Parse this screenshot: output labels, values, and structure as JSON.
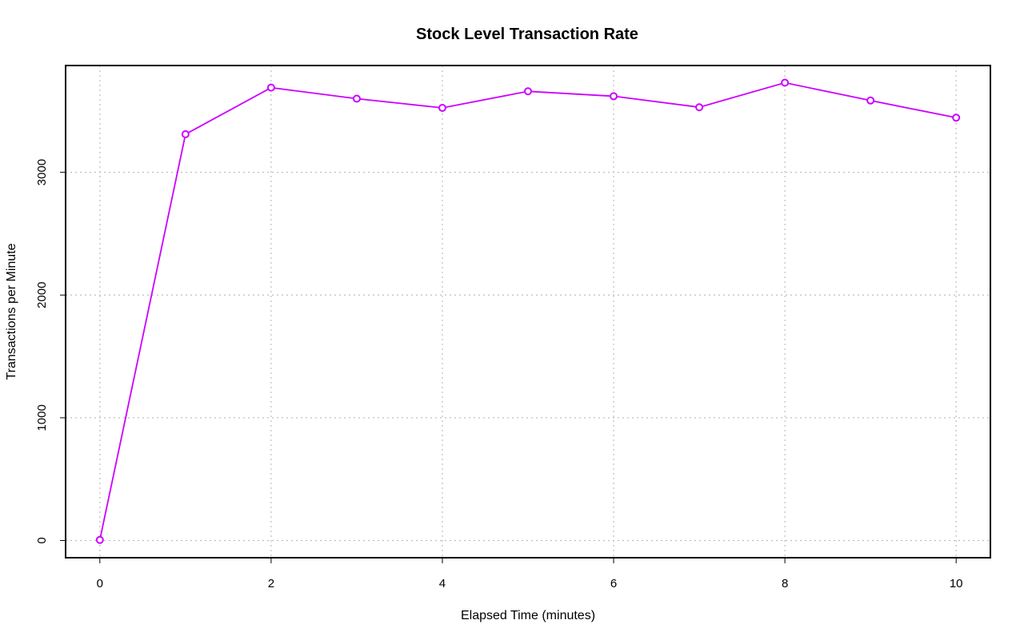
{
  "chart_data": {
    "type": "line",
    "title": "Stock Level Transaction Rate",
    "xlabel": "Elapsed Time (minutes)",
    "ylabel": "Transactions per Minute",
    "xlim": [
      -0.4,
      10.4
    ],
    "ylim": [
      -140,
      3870
    ],
    "xticks": [
      0,
      2,
      4,
      6,
      8,
      10
    ],
    "yticks": [
      0,
      1000,
      2000,
      3000
    ],
    "grid": true,
    "series": [
      {
        "color": "#cc00ff",
        "x": [
          0,
          1,
          2,
          3,
          4,
          5,
          6,
          7,
          8,
          9,
          10
        ],
        "values": [
          5,
          3310,
          3690,
          3600,
          3525,
          3660,
          3620,
          3530,
          3730,
          3585,
          3445
        ]
      }
    ]
  }
}
